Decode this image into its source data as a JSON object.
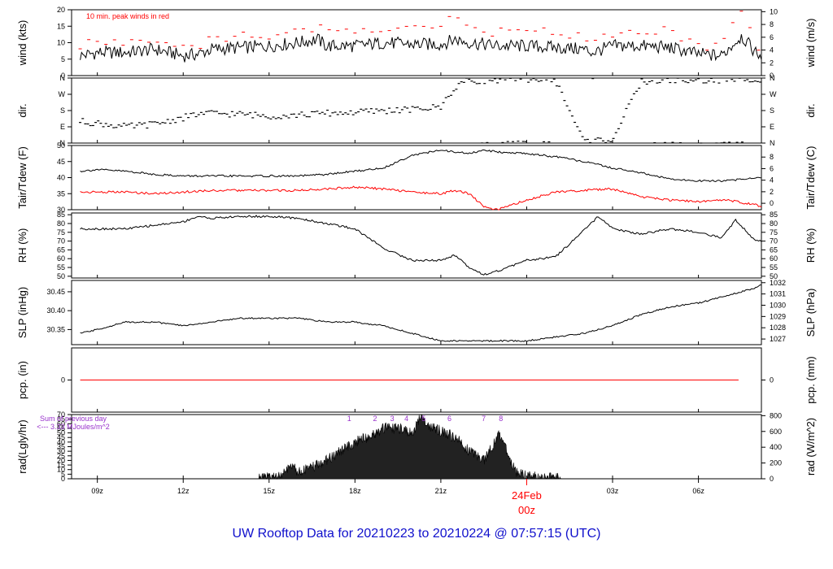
{
  "title": "UW Rooftop Data for 20210223  to  20210224 @ 07:57:15  (UTC)",
  "date_marker": {
    "day": "24Feb",
    "hour": "00z"
  },
  "chart_data": [
    {
      "type": "line",
      "id": "wind",
      "ylabel_left": "wind (kts)",
      "ylabel_right": "wind (m/s)",
      "left_ticks": [
        "0",
        "5",
        "10",
        "15",
        "20"
      ],
      "left_lim": [
        0,
        20
      ],
      "right_ticks": [
        "0",
        "2",
        "4",
        "6",
        "8",
        "10"
      ],
      "right_lim": [
        0,
        10.3
      ],
      "annotation": "10 min. peak winds in red",
      "series": [
        {
          "role": "mean",
          "color": "#000000",
          "x": [
            8.4,
            9,
            10,
            11,
            12,
            12.5,
            13,
            14,
            15,
            16,
            16.7,
            17,
            18,
            19,
            20,
            21,
            21.5,
            22,
            23,
            24,
            25,
            26,
            26.3,
            27,
            28,
            29,
            29.5,
            30,
            30.8,
            31.5,
            32,
            32.2
          ],
          "y": [
            6,
            7,
            7,
            8,
            6,
            6.5,
            8,
            8.5,
            9,
            10,
            11,
            9,
            9,
            10,
            9.5,
            9.5,
            11,
            10,
            9,
            9,
            8.5,
            8,
            7,
            9,
            9,
            8.5,
            7.5,
            6.5,
            6,
            12,
            7,
            6
          ]
        },
        {
          "role": "peak",
          "color": "#ff0000",
          "x": [
            8.4,
            9,
            10,
            11,
            12,
            12.5,
            13,
            14,
            15,
            16,
            16.7,
            17,
            18,
            19,
            20,
            21,
            21.5,
            22,
            23,
            24,
            25,
            26,
            26.3,
            27,
            28,
            29,
            29.5,
            30,
            30.8,
            31.5,
            32,
            32.2
          ],
          "y": [
            9,
            10,
            10,
            11,
            9,
            9,
            11,
            12,
            12,
            14,
            15,
            13,
            13,
            15,
            14,
            14,
            19,
            15,
            13,
            13,
            13,
            12,
            11,
            13,
            14,
            14,
            11,
            9,
            9,
            19,
            10,
            8
          ]
        }
      ]
    },
    {
      "type": "scatter",
      "id": "dir",
      "ylabel_left": "dir.",
      "ylabel_right": "dir.",
      "left_ticks": [
        "N",
        "E",
        "S",
        "W",
        "N"
      ],
      "left_lim": [
        0,
        360
      ],
      "right_ticks": [
        "N",
        "E",
        "S",
        "W",
        "N"
      ],
      "right_lim": [
        0,
        360
      ],
      "series": [
        {
          "color": "#000000",
          "x": [
            8.4,
            9,
            10,
            11,
            12,
            12.5,
            13,
            14,
            15,
            16,
            17,
            18,
            19,
            20,
            21,
            21.3,
            21.7,
            22,
            23,
            24,
            25,
            26,
            27,
            28,
            29,
            30,
            31,
            32,
            32.2
          ],
          "y": [
            120,
            110,
            90,
            105,
            140,
            160,
            165,
            160,
            150,
            155,
            165,
            170,
            180,
            185,
            200,
            270,
            335,
            345,
            350,
            355,
            350,
            10,
            20,
            340,
            350,
            345,
            350,
            355,
            355
          ]
        }
      ]
    },
    {
      "type": "line",
      "id": "temp",
      "ylabel_left": "Tair/Tdew (F)",
      "ylabel_right": "Tair/Tdew (C)",
      "left_ticks": [
        "30",
        "35",
        "40",
        "45",
        "50"
      ],
      "left_lim": [
        30,
        50
      ],
      "right_ticks": [
        "0",
        "2",
        "4",
        "6",
        "8"
      ],
      "right_lim": [
        -1.11,
        10
      ],
      "series": [
        {
          "role": "air",
          "color": "#000000",
          "x": [
            8.4,
            9,
            10,
            11,
            12,
            13,
            14,
            15,
            16,
            17,
            18,
            19,
            20,
            21,
            22,
            22.5,
            23,
            24,
            25,
            26,
            27,
            28,
            29,
            30,
            31,
            32,
            32.2
          ],
          "y": [
            42,
            42.5,
            42,
            41,
            40.5,
            40.5,
            40.5,
            40.5,
            40.5,
            41,
            42,
            43,
            47,
            48.5,
            47.5,
            48.5,
            48,
            47.5,
            46.5,
            45,
            43,
            41.5,
            39.5,
            39,
            39,
            40,
            40
          ]
        },
        {
          "role": "dew",
          "color": "#ff0000",
          "x": [
            8.4,
            9,
            10,
            11,
            12,
            13,
            14,
            15,
            16,
            17,
            18,
            19,
            20,
            21,
            21.5,
            22,
            22.5,
            23,
            24,
            25,
            26,
            27,
            28,
            29,
            30,
            31,
            32,
            32.2
          ],
          "y": [
            35.5,
            35.5,
            35.5,
            35,
            35.5,
            36,
            36,
            36,
            36,
            36.5,
            37,
            36.5,
            35.5,
            35,
            36,
            35,
            31,
            30,
            33,
            35.5,
            36,
            36.5,
            34,
            33,
            32.5,
            33,
            31.5,
            31
          ]
        }
      ]
    },
    {
      "type": "line",
      "id": "rh",
      "ylabel_left": "RH (%)",
      "ylabel_right": "RH (%)",
      "left_ticks": [
        "50",
        "55",
        "60",
        "65",
        "70",
        "75",
        "80",
        "85"
      ],
      "left_lim": [
        49,
        86
      ],
      "right_ticks": [
        "50",
        "55",
        "60",
        "65",
        "70",
        "75",
        "80",
        "85"
      ],
      "right_lim": [
        49,
        86
      ],
      "series": [
        {
          "color": "#000000",
          "x": [
            8.4,
            9,
            10,
            11,
            12,
            12.5,
            13,
            14,
            15,
            16,
            17,
            18,
            19,
            20,
            21,
            21.5,
            22,
            22.5,
            23,
            24,
            25,
            26,
            26.5,
            27,
            28,
            29,
            30,
            30.8,
            31.3,
            32,
            32.2
          ],
          "y": [
            77,
            77,
            77,
            79,
            81,
            84,
            83,
            84,
            84,
            83,
            80,
            77,
            66,
            59,
            59,
            62,
            55,
            51,
            53,
            59,
            61,
            76,
            84,
            77,
            74,
            77,
            75,
            72,
            82,
            70,
            70
          ]
        }
      ]
    },
    {
      "type": "line",
      "id": "slp",
      "ylabel_left": "SLP (inHg)",
      "ylabel_right": "SLP (hPa)",
      "left_ticks": [
        "30.35",
        "30.40",
        "30.45"
      ],
      "left_lim": [
        30.31,
        30.48
      ],
      "right_ticks": [
        "1027",
        "1028",
        "1029",
        "1030",
        "1031",
        "1032"
      ],
      "right_lim": [
        1026.5,
        1032.2
      ],
      "series": [
        {
          "color": "#000000",
          "x": [
            8.4,
            9,
            10,
            11,
            12,
            13,
            14,
            15,
            16,
            17,
            18,
            19,
            20,
            21,
            22,
            23,
            24,
            25,
            26,
            27,
            28,
            29,
            30,
            31,
            32,
            32.2
          ],
          "y": [
            30.34,
            30.35,
            30.37,
            30.37,
            30.36,
            30.37,
            30.38,
            30.38,
            30.38,
            30.37,
            30.37,
            30.36,
            30.34,
            30.32,
            30.32,
            30.32,
            30.32,
            30.33,
            30.34,
            30.36,
            30.39,
            30.41,
            30.42,
            30.44,
            30.46,
            30.47
          ]
        }
      ]
    },
    {
      "type": "line",
      "id": "pcp",
      "ylabel_left": "pcp. (in)",
      "ylabel_right": "pcp. (mm)",
      "left_ticks": [
        "0"
      ],
      "left_lim": [
        -1,
        1
      ],
      "right_ticks": [
        "0"
      ],
      "right_lim": [
        -1,
        1
      ],
      "series": [
        {
          "color": "#ff0000",
          "x": [
            8.4,
            32.2
          ],
          "y": [
            0,
            0
          ]
        }
      ]
    },
    {
      "type": "area",
      "id": "rad",
      "ylabel_left": "rad(Lgly/hr)",
      "ylabel_right": "rad (W/m^2)",
      "left_ticks": [
        "0",
        "5",
        "10",
        "15",
        "20",
        "25",
        "30",
        "35",
        "40",
        "45",
        "50",
        "55",
        "60",
        "65",
        "70"
      ],
      "left_lim": [
        0,
        70
      ],
      "right_ticks": [
        "0",
        "200",
        "400",
        "600",
        "800"
      ],
      "right_lim": [
        0,
        814
      ],
      "annotation": [
        "Sum of previous day",
        "<--- 3.33 MJoules/m^2"
      ],
      "markers": [
        {
          "label": "1",
          "x": 17.8
        },
        {
          "label": "2",
          "x": 18.7
        },
        {
          "label": "3",
          "x": 19.3
        },
        {
          "label": "4",
          "x": 19.8
        },
        {
          "label": "5",
          "x": 20.4
        },
        {
          "label": "6",
          "x": 21.3
        },
        {
          "label": "7",
          "x": 22.5
        },
        {
          "label": "8",
          "x": 23.1
        }
      ],
      "series": [
        {
          "color": "#000000",
          "x": [
            14.6,
            15,
            15.5,
            15.8,
            16,
            16.5,
            17,
            17.5,
            18,
            18.5,
            19,
            19.5,
            20,
            20.3,
            20.6,
            21,
            21.5,
            22,
            22.5,
            22.8,
            23,
            23.3,
            23.6,
            24,
            25,
            25.2
          ],
          "y": [
            0,
            1,
            5,
            15,
            8,
            12,
            20,
            30,
            40,
            46,
            55,
            55,
            50,
            68,
            58,
            52,
            45,
            30,
            20,
            35,
            50,
            30,
            8,
            3,
            1,
            0
          ]
        }
      ]
    }
  ],
  "x_axis": {
    "ticks": [
      {
        "label": "09z",
        "x": 9
      },
      {
        "label": "12z",
        "x": 12
      },
      {
        "label": "15z",
        "x": 15
      },
      {
        "label": "18z",
        "x": 18
      },
      {
        "label": "21z",
        "x": 21
      },
      {
        "label": "00z",
        "x": 24
      },
      {
        "label": "03z",
        "x": 27
      },
      {
        "label": "06z",
        "x": 30
      }
    ],
    "lim": [
      8.1,
      32.2
    ],
    "day_break": 24
  }
}
